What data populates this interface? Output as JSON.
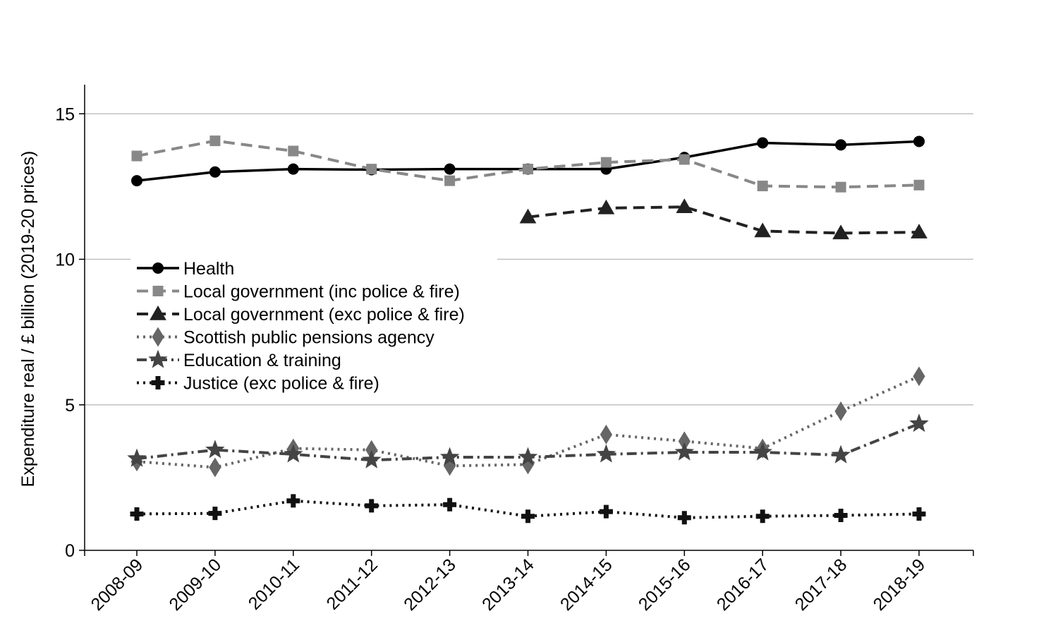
{
  "chart_data": {
    "type": "line",
    "title": "",
    "xlabel": "",
    "ylabel": "Expenditure real / £ billion (2019-20 prices)",
    "ylim": [
      0,
      16
    ],
    "yticks": [
      0,
      5,
      10,
      15
    ],
    "grid": "horizontal",
    "legend_position": "center-left",
    "categories": [
      "2008-09",
      "2009-10",
      "2010-11",
      "2011-12",
      "2012-13",
      "2013-14",
      "2014-15",
      "2015-16",
      "2016-17",
      "2017-18",
      "2018-19"
    ],
    "series": [
      {
        "name": "Health",
        "values": [
          12.7,
          13.0,
          13.1,
          13.08,
          13.1,
          13.1,
          13.1,
          13.5,
          14.0,
          13.93,
          14.05
        ],
        "color": "#000000",
        "line_style": "solid",
        "marker": "circle"
      },
      {
        "name": "Local government (inc police & fire)",
        "values": [
          13.55,
          14.07,
          13.72,
          13.1,
          12.7,
          13.1,
          13.33,
          13.43,
          12.52,
          12.48,
          12.55
        ],
        "color": "#888888",
        "line_style": "dashed",
        "marker": "square"
      },
      {
        "name": "Local government (exc police & fire)",
        "values": [
          null,
          null,
          null,
          null,
          null,
          11.45,
          11.76,
          11.8,
          10.97,
          10.9,
          10.93
        ],
        "color": "#222222",
        "line_style": "dashed",
        "marker": "triangle"
      },
      {
        "name": "Scottish public pensions agency",
        "values": [
          3.05,
          2.85,
          3.5,
          3.45,
          2.9,
          2.95,
          3.98,
          3.75,
          3.5,
          4.78,
          5.98
        ],
        "color": "#666666",
        "line_style": "dotted",
        "marker": "diamond"
      },
      {
        "name": "Education & training",
        "values": [
          3.15,
          3.45,
          3.3,
          3.1,
          3.2,
          3.2,
          3.3,
          3.37,
          3.37,
          3.27,
          4.35
        ],
        "color": "#444444",
        "line_style": "dashdot",
        "marker": "star"
      },
      {
        "name": "Justice (exc police & fire)",
        "values": [
          1.25,
          1.27,
          1.7,
          1.53,
          1.57,
          1.17,
          1.33,
          1.12,
          1.17,
          1.2,
          1.25
        ],
        "color": "#111111",
        "line_style": "dotted",
        "marker": "plus"
      }
    ]
  }
}
